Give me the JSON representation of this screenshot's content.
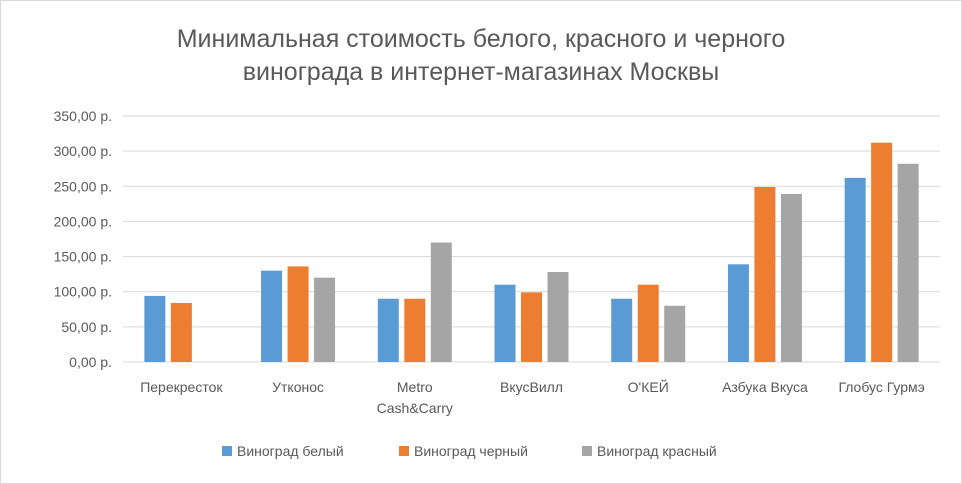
{
  "chart_data": {
    "type": "bar",
    "title_lines": [
      "Минимальная стоимость белого, красного и черного",
      "винограда в интернет-магазинах Москвы"
    ],
    "categories": [
      [
        "Перекресток"
      ],
      [
        "Утконос"
      ],
      [
        "Metro",
        "Cash&Carry"
      ],
      [
        "ВкусВилл"
      ],
      [
        "О'КЕЙ"
      ],
      [
        "Азбука Вкуса"
      ],
      [
        "Глобус Гурмэ"
      ]
    ],
    "y_ticks": [
      "0,00 р.",
      "50,00 р.",
      "100,00 р.",
      "150,00 р.",
      "200,00 р.",
      "250,00 р.",
      "300,00 р.",
      "350,00 р."
    ],
    "ylim": [
      0,
      350
    ],
    "grid": true,
    "legend_position": "bottom",
    "series": [
      {
        "name": "Виноград белый",
        "color": "#5b9bd5",
        "values": [
          94,
          130,
          90,
          110,
          90,
          139,
          262
        ]
      },
      {
        "name": "Виноград черный",
        "color": "#ed7d31",
        "values": [
          84,
          136,
          90,
          99,
          110,
          249,
          312
        ]
      },
      {
        "name": "Виноград красный",
        "color": "#a5a5a5",
        "values": [
          null,
          120,
          170,
          128,
          80,
          239,
          282
        ]
      }
    ]
  }
}
